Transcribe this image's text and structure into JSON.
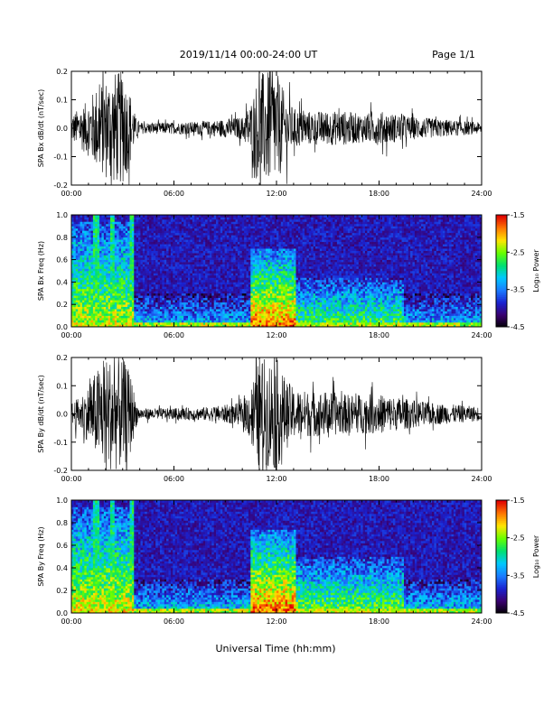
{
  "header": {
    "date_range": "2019/11/14  00:00-24:00 UT",
    "page": "Page 1/1"
  },
  "xlabel": "Universal Time (hh:mm)",
  "colors": {
    "trace": "#000000",
    "colormap": [
      "#000000",
      "#3a006e",
      "#1a22d0",
      "#1a7bff",
      "#00c8ff",
      "#00e070",
      "#66ff00",
      "#ffe600",
      "#ff7700",
      "#e00000"
    ]
  },
  "chart_data": [
    {
      "type": "line",
      "ylabel": "SPA Bx dB/dt (nT/sec)",
      "xlim": [
        "00:00",
        "24:00"
      ],
      "xticks": [
        "00:00",
        "06:00",
        "12:00",
        "18:00",
        "24:00"
      ],
      "ylim": [
        -0.2,
        0.2
      ],
      "yticks": [
        "0.2",
        "0.1",
        "0.0",
        "-0.1",
        "-0.2"
      ],
      "envelope": {
        "x_hours": [
          0,
          0.5,
          1.0,
          1.5,
          2.0,
          2.5,
          3.0,
          3.5,
          3.75,
          4.0,
          6,
          8,
          10,
          10.5,
          11.0,
          11.5,
          12.0,
          12.5,
          13,
          14,
          15,
          16,
          17,
          18,
          19,
          20,
          21,
          22,
          23,
          24
        ],
        "amplitude": [
          0.05,
          0.07,
          0.1,
          0.15,
          0.18,
          0.2,
          0.2,
          0.12,
          0.04,
          0.02,
          0.02,
          0.025,
          0.04,
          0.09,
          0.2,
          0.2,
          0.2,
          0.12,
          0.07,
          0.06,
          0.06,
          0.06,
          0.05,
          0.06,
          0.05,
          0.04,
          0.035,
          0.03,
          0.025,
          0.02
        ]
      }
    },
    {
      "type": "heatmap",
      "ylabel": "SPA Bx Freq (Hz)",
      "colorbar_label": "Log₁₀ Power",
      "xlim": [
        "00:00",
        "24:00"
      ],
      "xticks": [
        "00:00",
        "06:00",
        "12:00",
        "18:00",
        "24:00"
      ],
      "ylim": [
        0.0,
        1.0
      ],
      "yticks": [
        "1.0",
        "0.8",
        "0.6",
        "0.4",
        "0.2",
        "0.0"
      ],
      "color_range": [
        -4.5,
        -1.5
      ],
      "colorbar_ticks": [
        "-1.5",
        "-2.5",
        "-3.5",
        "-4.5"
      ],
      "activity": [
        {
          "t0": 0.0,
          "t1": 3.6,
          "fmax": 0.95,
          "peak": -2.3
        },
        {
          "t0": 10.5,
          "t1": 13.2,
          "fmax": 0.7,
          "peak": -1.8
        },
        {
          "t0": 13.2,
          "t1": 19.5,
          "fmax": 0.45,
          "peak": -2.6
        },
        {
          "t0": 19.5,
          "t1": 24.0,
          "fmax": 0.3,
          "peak": -3.2
        }
      ]
    },
    {
      "type": "line",
      "ylabel": "SPA By dB/dt (nT/sec)",
      "xlim": [
        "00:00",
        "24:00"
      ],
      "xticks": [
        "00:00",
        "06:00",
        "12:00",
        "18:00",
        "24:00"
      ],
      "ylim": [
        -0.2,
        0.2
      ],
      "yticks": [
        "0.2",
        "0.1",
        "0.0",
        "-0.1",
        "-0.2"
      ],
      "envelope": {
        "x_hours": [
          0,
          0.5,
          1.0,
          1.5,
          2.0,
          2.5,
          3.0,
          3.5,
          3.75,
          4.0,
          6,
          8,
          10,
          10.5,
          11.0,
          11.5,
          12.0,
          12.5,
          13,
          14,
          15,
          16,
          17,
          18,
          19,
          20,
          21,
          22,
          23,
          24
        ],
        "amplitude": [
          0.04,
          0.06,
          0.1,
          0.16,
          0.2,
          0.2,
          0.2,
          0.14,
          0.05,
          0.02,
          0.02,
          0.025,
          0.04,
          0.1,
          0.2,
          0.2,
          0.2,
          0.13,
          0.09,
          0.08,
          0.08,
          0.07,
          0.07,
          0.07,
          0.06,
          0.05,
          0.04,
          0.035,
          0.03,
          0.025
        ]
      }
    },
    {
      "type": "heatmap",
      "ylabel": "SPA By Freq (Hz)",
      "colorbar_label": "Log₁₀ Power",
      "xlim": [
        "00:00",
        "24:00"
      ],
      "xticks": [
        "00:00",
        "06:00",
        "12:00",
        "18:00",
        "24:00"
      ],
      "ylim": [
        0.0,
        1.0
      ],
      "yticks": [
        "1.0",
        "0.8",
        "0.6",
        "0.4",
        "0.2",
        "0.0"
      ],
      "color_range": [
        -4.5,
        -1.5
      ],
      "colorbar_ticks": [
        "-1.5",
        "-2.5",
        "-3.5",
        "-4.5"
      ],
      "activity": [
        {
          "t0": 0.0,
          "t1": 3.6,
          "fmax": 0.95,
          "peak": -2.2
        },
        {
          "t0": 10.5,
          "t1": 13.2,
          "fmax": 0.75,
          "peak": -1.8
        },
        {
          "t0": 13.2,
          "t1": 19.5,
          "fmax": 0.5,
          "peak": -2.5
        },
        {
          "t0": 19.5,
          "t1": 24.0,
          "fmax": 0.3,
          "peak": -3.1
        }
      ]
    }
  ]
}
